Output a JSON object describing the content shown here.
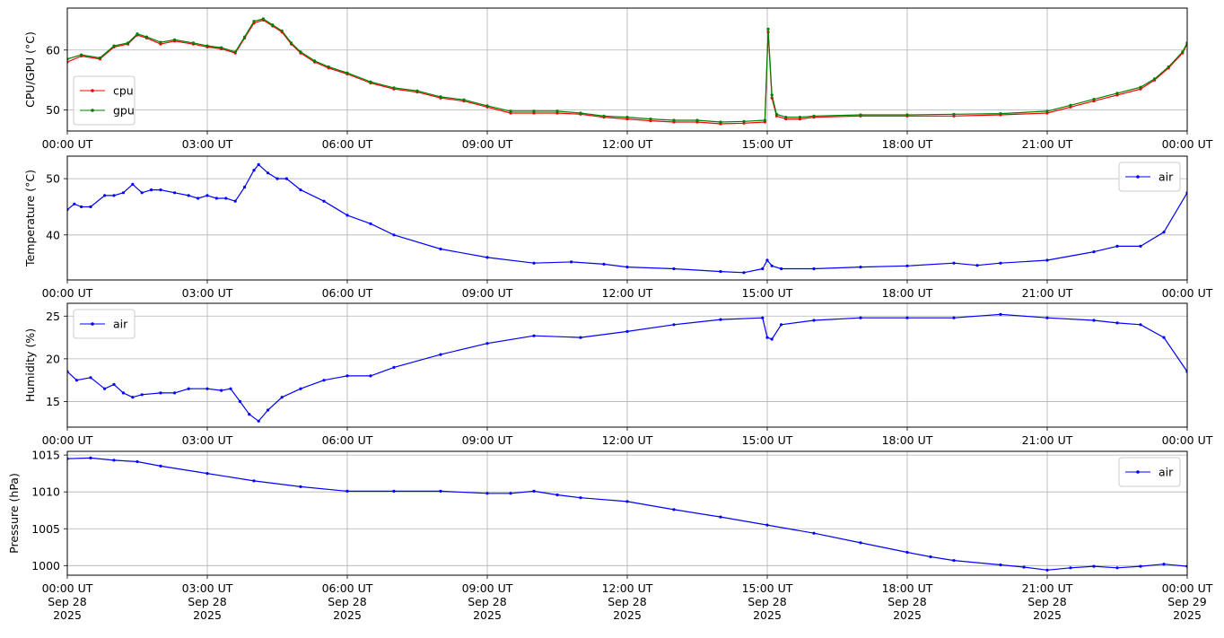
{
  "chart_data": [
    {
      "type": "line",
      "ylabel": "CPU/GPU (°C)",
      "xlabel": "",
      "ylim": [
        46.5,
        67
      ],
      "yticks": [
        50,
        60
      ],
      "grid": true,
      "legend": "lower-left",
      "x_tick_labels": [
        [
          "00:00 UT"
        ],
        [
          "03:00 UT"
        ],
        [
          "06:00 UT"
        ],
        [
          "09:00 UT"
        ],
        [
          "12:00 UT"
        ],
        [
          "15:00 UT"
        ],
        [
          "18:00 UT"
        ],
        [
          "21:00 UT"
        ],
        [
          "00:00 UT"
        ]
      ],
      "series": [
        {
          "name": "cpu",
          "color": "#ff0000",
          "x": [
            0,
            0.3,
            0.7,
            1.0,
            1.3,
            1.5,
            1.7,
            2.0,
            2.3,
            2.7,
            3.0,
            3.3,
            3.6,
            3.8,
            4.0,
            4.2,
            4.4,
            4.6,
            4.8,
            5.0,
            5.3,
            5.6,
            6.0,
            6.5,
            7.0,
            7.5,
            8.0,
            8.5,
            9.0,
            9.5,
            10.0,
            10.5,
            11.0,
            11.5,
            12.0,
            12.5,
            13.0,
            13.5,
            14.0,
            14.5,
            14.95,
            15.02,
            15.1,
            15.2,
            15.4,
            15.7,
            16.0,
            17.0,
            18.0,
            19.0,
            20.0,
            21.0,
            21.5,
            22.0,
            22.5,
            23.0,
            23.3,
            23.6,
            23.9,
            24.0
          ],
          "values": [
            58,
            59,
            58.5,
            60.5,
            61,
            62.5,
            62,
            61,
            61.5,
            61,
            60.5,
            60.2,
            59.5,
            62,
            64.5,
            65,
            64,
            63,
            61,
            59.5,
            58,
            57,
            56,
            54.5,
            53.5,
            53,
            52,
            51.5,
            50.5,
            49.5,
            49.5,
            49.5,
            49.3,
            48.8,
            48.5,
            48.2,
            48,
            48,
            47.7,
            47.8,
            48,
            63,
            52,
            49,
            48.5,
            48.5,
            48.8,
            49,
            49,
            49,
            49.2,
            49.5,
            50.5,
            51.5,
            52.5,
            53.5,
            55,
            57,
            59.5,
            61
          ]
        },
        {
          "name": "gpu",
          "color": "#008000",
          "x": [
            0,
            0.3,
            0.7,
            1.0,
            1.3,
            1.5,
            1.7,
            2.0,
            2.3,
            2.7,
            3.0,
            3.3,
            3.6,
            3.8,
            4.0,
            4.2,
            4.4,
            4.6,
            4.8,
            5.0,
            5.3,
            5.6,
            6.0,
            6.5,
            7.0,
            7.5,
            8.0,
            8.5,
            9.0,
            9.5,
            10.0,
            10.5,
            11.0,
            11.5,
            12.0,
            12.5,
            13.0,
            13.5,
            14.0,
            14.5,
            14.95,
            15.02,
            15.1,
            15.2,
            15.4,
            15.7,
            16.0,
            17.0,
            18.0,
            19.0,
            20.0,
            21.0,
            21.5,
            22.0,
            22.5,
            23.0,
            23.3,
            23.6,
            23.9,
            24.0
          ],
          "values": [
            58.5,
            59.2,
            58.7,
            60.7,
            61.2,
            62.7,
            62.2,
            61.3,
            61.7,
            61.2,
            60.7,
            60.4,
            59.7,
            62.2,
            64.8,
            65.2,
            64.2,
            63.2,
            61.2,
            59.7,
            58.2,
            57.2,
            56.2,
            54.7,
            53.7,
            53.2,
            52.2,
            51.7,
            50.7,
            49.8,
            49.8,
            49.8,
            49.5,
            49,
            48.8,
            48.5,
            48.3,
            48.3,
            48,
            48.1,
            48.3,
            63.5,
            52.5,
            49.3,
            48.8,
            48.8,
            49,
            49.2,
            49.2,
            49.3,
            49.4,
            49.8,
            50.8,
            51.8,
            52.8,
            53.8,
            55.2,
            57.2,
            59.7,
            61.2
          ]
        }
      ]
    },
    {
      "type": "line",
      "ylabel": "Temperature (°C)",
      "xlabel": "",
      "ylim": [
        32,
        54
      ],
      "yticks": [
        40,
        50
      ],
      "grid": true,
      "legend": "top-right",
      "x_tick_labels": [
        [
          "00:00 UT"
        ],
        [
          "03:00 UT"
        ],
        [
          "06:00 UT"
        ],
        [
          "09:00 UT"
        ],
        [
          "12:00 UT"
        ],
        [
          "15:00 UT"
        ],
        [
          "18:00 UT"
        ],
        [
          "21:00 UT"
        ],
        [
          "00:00 UT"
        ]
      ],
      "series": [
        {
          "name": "air",
          "color": "#0000ff",
          "x": [
            0,
            0.15,
            0.3,
            0.5,
            0.8,
            1.0,
            1.2,
            1.4,
            1.6,
            1.8,
            2.0,
            2.3,
            2.6,
            2.8,
            3.0,
            3.2,
            3.4,
            3.6,
            3.8,
            4.0,
            4.1,
            4.3,
            4.5,
            4.7,
            5.0,
            5.5,
            6.0,
            6.5,
            7.0,
            8.0,
            9.0,
            10.0,
            10.8,
            11.5,
            12.0,
            13.0,
            14.0,
            14.5,
            14.9,
            15.0,
            15.1,
            15.3,
            16.0,
            17.0,
            18.0,
            19.0,
            19.5,
            20.0,
            21.0,
            22.0,
            22.5,
            23.0,
            23.5,
            24.0
          ],
          "values": [
            44.5,
            45.5,
            45,
            45,
            47,
            47,
            47.5,
            49,
            47.5,
            48,
            48,
            47.5,
            47,
            46.5,
            47,
            46.5,
            46.5,
            46,
            48.5,
            51.5,
            52.5,
            51,
            50,
            50,
            48,
            46,
            43.5,
            42,
            40,
            37.5,
            36,
            35,
            35.2,
            34.8,
            34.3,
            34,
            33.5,
            33.3,
            34,
            35.5,
            34.5,
            34,
            34,
            34.3,
            34.5,
            35,
            34.6,
            35,
            35.5,
            37,
            38,
            38,
            40.5,
            47.5
          ]
        }
      ]
    },
    {
      "type": "line",
      "ylabel": "Humidity (%)",
      "xlabel": "",
      "ylim": [
        12,
        26.5
      ],
      "yticks": [
        15,
        20,
        25
      ],
      "grid": true,
      "legend": "top-left",
      "x_tick_labels": [
        [
          "00:00 UT"
        ],
        [
          "03:00 UT"
        ],
        [
          "06:00 UT"
        ],
        [
          "09:00 UT"
        ],
        [
          "12:00 UT"
        ],
        [
          "15:00 UT"
        ],
        [
          "18:00 UT"
        ],
        [
          "21:00 UT"
        ],
        [
          "00:00 UT"
        ]
      ],
      "series": [
        {
          "name": "air",
          "color": "#0000ff",
          "x": [
            0,
            0.2,
            0.5,
            0.8,
            1.0,
            1.2,
            1.4,
            1.6,
            2.0,
            2.3,
            2.6,
            3.0,
            3.3,
            3.5,
            3.7,
            3.9,
            4.1,
            4.3,
            4.6,
            5.0,
            5.5,
            6.0,
            6.5,
            7.0,
            8.0,
            9.0,
            10.0,
            11.0,
            12.0,
            13.0,
            14.0,
            14.9,
            15.0,
            15.1,
            15.3,
            16.0,
            17.0,
            18.0,
            19.0,
            20.0,
            21.0,
            22.0,
            22.5,
            23.0,
            23.5,
            24.0
          ],
          "values": [
            18.5,
            17.5,
            17.8,
            16.5,
            17,
            16,
            15.5,
            15.8,
            16,
            16,
            16.5,
            16.5,
            16.3,
            16.5,
            15,
            13.5,
            12.7,
            14,
            15.5,
            16.5,
            17.5,
            18,
            18,
            19,
            20.5,
            21.8,
            22.7,
            22.5,
            23.2,
            24,
            24.6,
            24.8,
            22.5,
            22.3,
            24,
            24.5,
            24.8,
            24.8,
            24.8,
            25.2,
            24.8,
            24.5,
            24.2,
            24,
            22.5,
            18.5
          ]
        }
      ]
    },
    {
      "type": "line",
      "ylabel": "Pressure (hPa)",
      "xlabel": "",
      "ylim": [
        998.7,
        1015.5
      ],
      "yticks": [
        1000,
        1005,
        1010,
        1015
      ],
      "grid": true,
      "legend": "top-right",
      "x_tick_labels": [
        [
          "00:00 UT",
          "Sep 28",
          "2025"
        ],
        [
          "03:00 UT",
          "Sep 28",
          "2025"
        ],
        [
          "06:00 UT",
          "Sep 28",
          "2025"
        ],
        [
          "09:00 UT",
          "Sep 28",
          "2025"
        ],
        [
          "12:00 UT",
          "Sep 28",
          "2025"
        ],
        [
          "15:00 UT",
          "Sep 28",
          "2025"
        ],
        [
          "18:00 UT",
          "Sep 28",
          "2025"
        ],
        [
          "21:00 UT",
          "Sep 28",
          "2025"
        ],
        [
          "00:00 UT",
          "Sep 29",
          "2025"
        ]
      ],
      "series": [
        {
          "name": "air",
          "color": "#0000ff",
          "x": [
            0,
            0.5,
            1.0,
            1.5,
            2.0,
            3.0,
            4.0,
            5.0,
            6.0,
            7.0,
            8.0,
            9.0,
            9.5,
            10.0,
            10.5,
            11.0,
            12.0,
            13.0,
            14.0,
            15.0,
            16.0,
            17.0,
            18.0,
            18.5,
            19.0,
            20.0,
            20.5,
            21.0,
            21.5,
            22.0,
            22.5,
            23.0,
            23.5,
            24.0
          ],
          "values": [
            1014.5,
            1014.6,
            1014.3,
            1014.1,
            1013.5,
            1012.5,
            1011.5,
            1010.7,
            1010.1,
            1010.1,
            1010.1,
            1009.8,
            1009.8,
            1010.1,
            1009.6,
            1009.2,
            1008.7,
            1007.6,
            1006.6,
            1005.5,
            1004.4,
            1003.1,
            1001.8,
            1001.2,
            1000.7,
            1000.1,
            999.8,
            999.4,
            999.7,
            999.9,
            999.7,
            999.9,
            1000.2,
            999.9
          ]
        }
      ]
    }
  ]
}
